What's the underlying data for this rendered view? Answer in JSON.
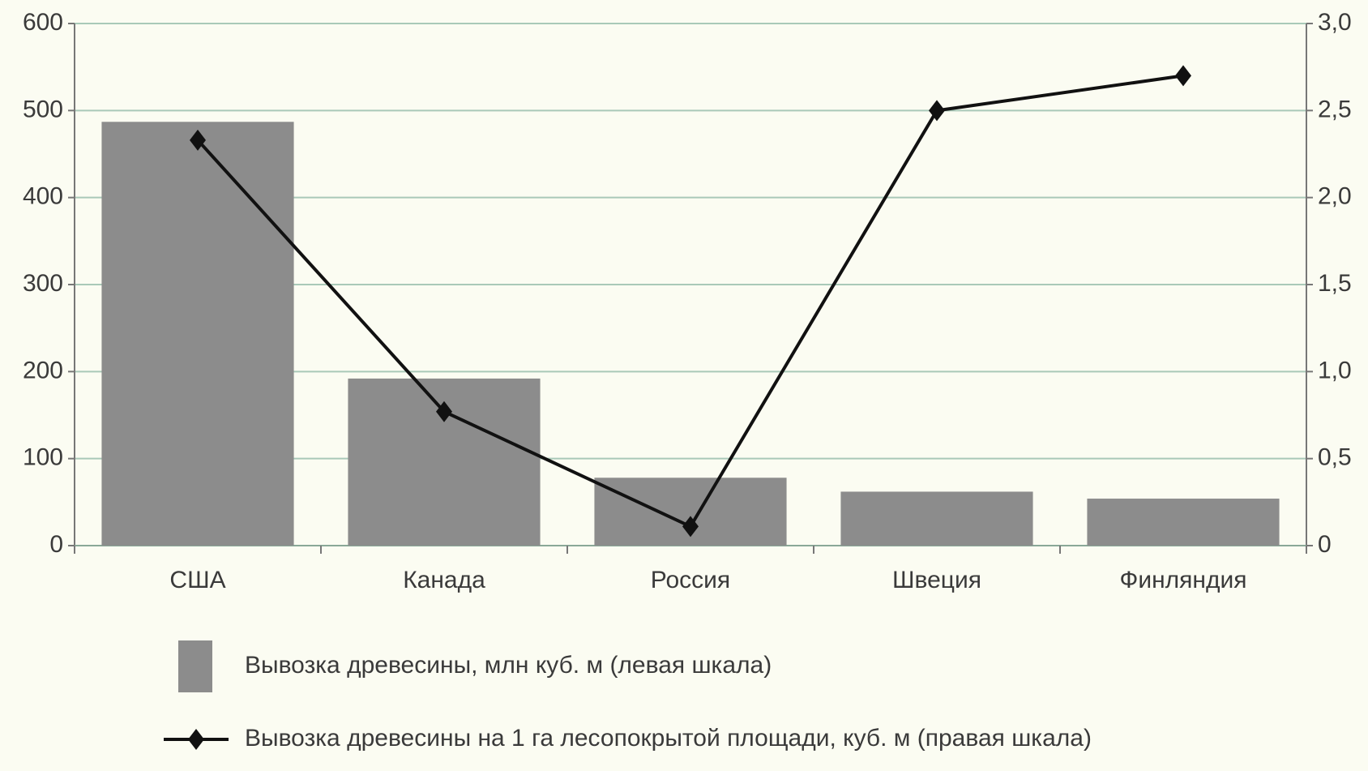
{
  "chart_data": {
    "type": "bar",
    "categories": [
      "США",
      "Канада",
      "Россия",
      "Швеция",
      "Финляндия"
    ],
    "series": [
      {
        "name": "Вывозка древесины, млн куб. м (левая шкала)",
        "type": "bar",
        "color": "#8c8c8c",
        "values": [
          487,
          192,
          78,
          62,
          54
        ]
      },
      {
        "name": "Вывозка древесины на 1 га лесопокрытой площади, куб. м (правая шкала)",
        "type": "line",
        "axis": "y2",
        "color": "#111111",
        "values": [
          2.33,
          0.77,
          0.11,
          2.5,
          2.7
        ]
      }
    ],
    "ylim": [
      0,
      600
    ],
    "yticks": [
      0,
      100,
      200,
      300,
      400,
      500,
      600
    ],
    "y2lim": [
      0,
      3
    ],
    "y2ticks": [
      0,
      {
        "value": 0.5,
        "label": "0,5"
      },
      {
        "value": 1,
        "label": "1,0"
      },
      {
        "value": 1.5,
        "label": "1,5"
      },
      {
        "value": 2,
        "label": "2,0"
      },
      {
        "value": 2.5,
        "label": "2,5"
      },
      {
        "value": 3,
        "label": "3,0"
      }
    ],
    "grid": true,
    "grid_color": "#a9c9b8",
    "legend": "bottom"
  }
}
